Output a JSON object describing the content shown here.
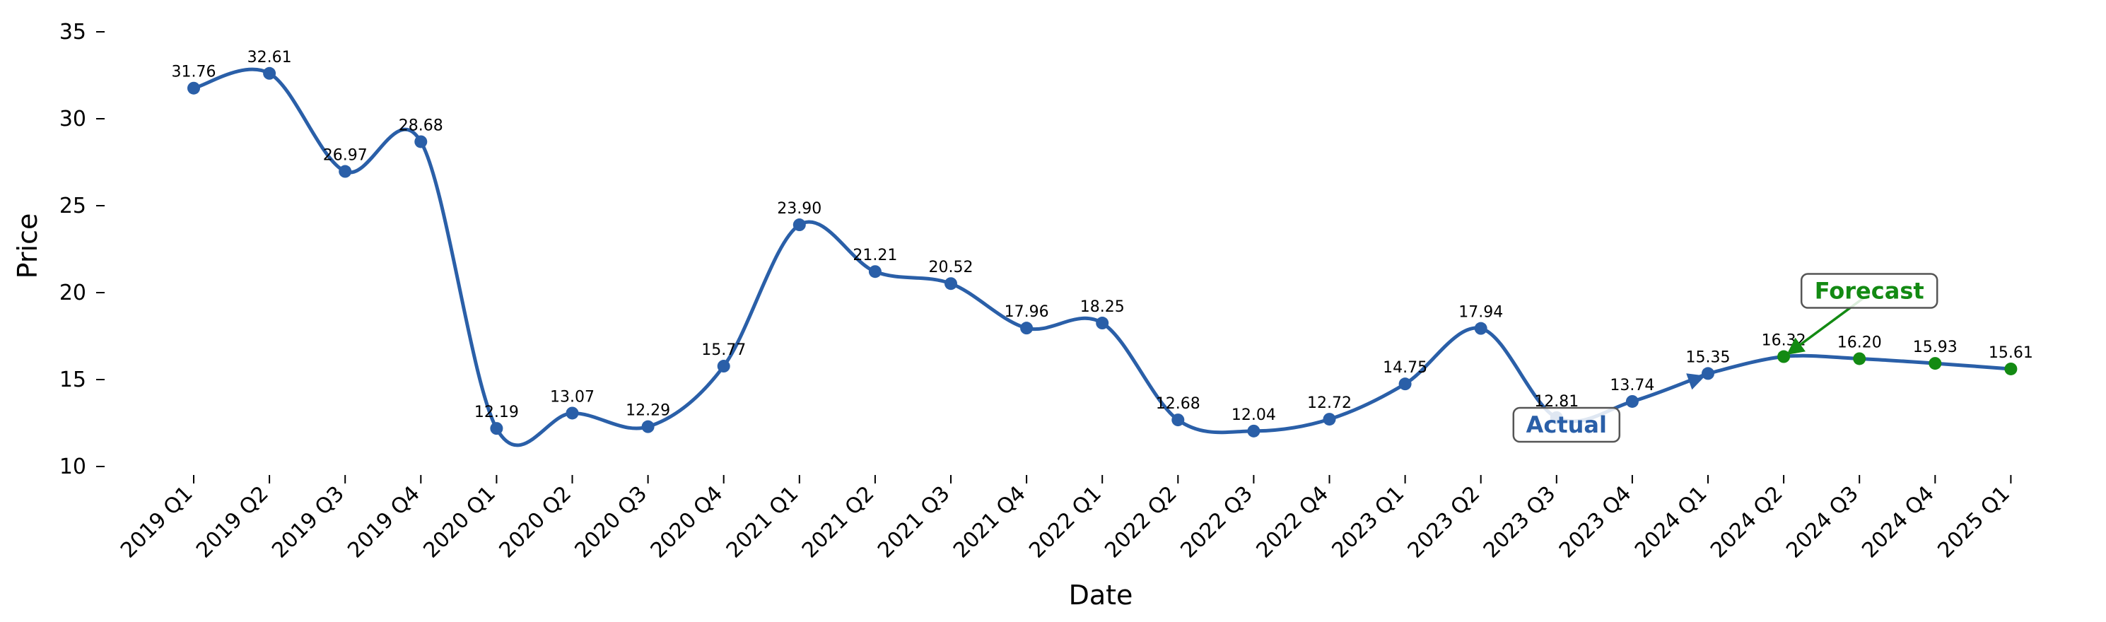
{
  "chart_data": {
    "type": "line",
    "xlabel": "Date",
    "ylabel": "Price",
    "ylim": [
      10,
      35
    ],
    "yticks": [
      10,
      15,
      20,
      25,
      30,
      35
    ],
    "grid": false,
    "colors": {
      "actual": "#2a5fa8",
      "forecast": "#138a13",
      "box_edge": "#555555"
    },
    "categories": [
      "2019 Q1",
      "2019 Q2",
      "2019 Q3",
      "2019 Q4",
      "2020 Q1",
      "2020 Q2",
      "2020 Q3",
      "2020 Q4",
      "2021 Q1",
      "2021 Q2",
      "2021 Q3",
      "2021 Q4",
      "2022 Q1",
      "2022 Q2",
      "2022 Q3",
      "2022 Q4",
      "2023 Q1",
      "2023 Q2",
      "2023 Q3",
      "2023 Q4",
      "2024 Q1",
      "2024 Q2",
      "2024 Q3",
      "2024 Q4",
      "2025 Q1"
    ],
    "series": [
      {
        "name": "Actual",
        "role": "actual",
        "values": [
          31.76,
          32.61,
          26.97,
          28.68,
          12.19,
          13.07,
          12.29,
          15.77,
          23.9,
          21.21,
          20.52,
          17.96,
          18.25,
          12.68,
          12.04,
          12.72,
          14.75,
          17.94,
          12.81,
          13.74,
          15.35,
          null,
          null,
          null,
          null
        ],
        "labels": [
          "31.76",
          "32.61",
          "26.97",
          "28.68",
          "12.19",
          "13.07",
          "12.29",
          "15.77",
          "23.90",
          "21.21",
          "20.52",
          "17.96",
          "18.25",
          "12.68",
          "12.04",
          "12.72",
          "14.75",
          "17.94",
          "12.81",
          "13.74",
          "15.35",
          "",
          "",
          "",
          ""
        ]
      },
      {
        "name": "Forecast",
        "role": "forecast",
        "values": [
          null,
          null,
          null,
          null,
          null,
          null,
          null,
          null,
          null,
          null,
          null,
          null,
          null,
          null,
          null,
          null,
          null,
          null,
          null,
          null,
          15.35,
          16.32,
          16.2,
          15.93,
          15.61
        ],
        "labels": [
          "",
          "",
          "",
          "",
          "",
          "",
          "",
          "",
          "",
          "",
          "",
          "",
          "",
          "",
          "",
          "",
          "",
          "",
          "",
          "",
          "",
          "16.32",
          "16.20",
          "15.93",
          "15.61"
        ]
      }
    ],
    "annotations": [
      {
        "text": "Actual",
        "role": "actual",
        "text_at": {
          "x": "2023 Q3",
          "y": 12.4
        },
        "points_to": {
          "x": "2024 Q1",
          "y": 15.35
        }
      },
      {
        "text": "Forecast",
        "role": "forecast",
        "text_at": {
          "x": "2024 Q3",
          "y": 20.1
        },
        "points_to": {
          "x": "2024 Q2",
          "y": 16.32
        }
      }
    ]
  }
}
